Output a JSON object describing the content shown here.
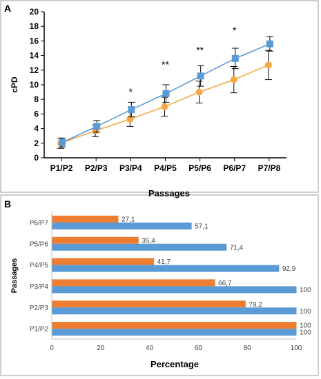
{
  "chart_data": [
    {
      "panel_label": "A",
      "type": "line",
      "xlabel": "Passages",
      "ylabel": "cPD",
      "ylim": [
        0,
        20
      ],
      "yticks": [
        0,
        2,
        4,
        6,
        8,
        10,
        12,
        14,
        16,
        18,
        20
      ],
      "categories": [
        "P1/P2",
        "P2/P3",
        "P3/P4",
        "P4/P5",
        "P5/P6",
        "P6/P7",
        "P7/P8"
      ],
      "grid": false,
      "series": [
        {
          "color": "#5B9BD5",
          "marker": "square",
          "values": [
            2.1,
            4.3,
            6.6,
            8.8,
            11.2,
            13.6,
            15.6
          ],
          "error": [
            0.6,
            0.8,
            1.0,
            1.2,
            1.4,
            1.4,
            1.0
          ]
        },
        {
          "color": "#F4A947",
          "marker": "circle",
          "values": [
            2.0,
            3.7,
            5.3,
            7.0,
            9.0,
            10.7,
            12.7
          ],
          "error": [
            0.7,
            0.8,
            1.0,
            1.3,
            1.5,
            1.8,
            2.0
          ]
        }
      ],
      "annotations": [
        {
          "category": "P3/P4",
          "text": "*"
        },
        {
          "category": "P4/P5",
          "text": "**"
        },
        {
          "category": "P5/P6",
          "text": "**"
        },
        {
          "category": "P6/P7",
          "text": "*"
        }
      ]
    },
    {
      "panel_label": "B",
      "type": "bar",
      "orientation": "horizontal",
      "xlabel": "Percentage",
      "ylabel": "Passages",
      "xlim": [
        0,
        100
      ],
      "xticks": [
        0,
        20,
        40,
        60,
        80,
        100
      ],
      "categories": [
        "P1/P2",
        "P2/P3",
        "P3/P4",
        "P4/P5",
        "P5/P6",
        "P6/P7"
      ],
      "series": [
        {
          "color": "#ED7D31",
          "values": [
            100,
            79.2,
            66.7,
            41.7,
            35.4,
            27.1
          ],
          "labels": [
            "100",
            "79,2",
            "66,7",
            "41,7",
            "35,4",
            "27,1"
          ]
        },
        {
          "color": "#5B9BD5",
          "values": [
            100,
            100,
            100,
            92.9,
            71.4,
            57.1
          ],
          "labels": [
            "100",
            "100",
            "100",
            "92,9",
            "71,4",
            "57,1"
          ]
        }
      ]
    }
  ]
}
